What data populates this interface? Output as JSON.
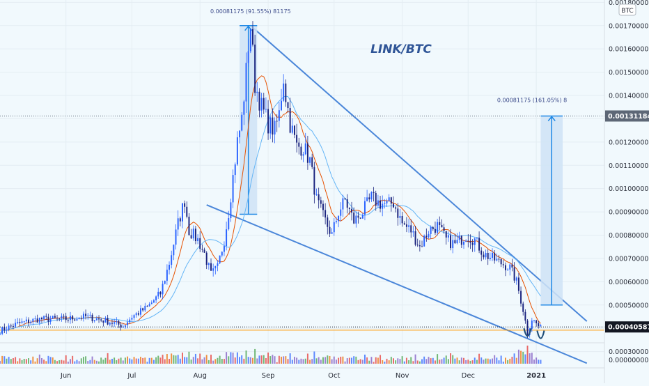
{
  "chart_data": {
    "type": "candlestick",
    "title": "LINK/BTC",
    "currency_badge": "BTC",
    "y_ticks": [
      "0.00180000",
      "0.00170000",
      "0.00160000",
      "0.00150000",
      "0.00140000",
      "0.00130000",
      "0.00120000",
      "0.00110000",
      "0.00100000",
      "0.00090000",
      "0.00080000",
      "0.00070000",
      "0.00060000",
      "0.00050000",
      "0.00040000",
      "0.00030000"
    ],
    "y_tick_values": [
      0.0018,
      0.0017,
      0.0016,
      0.0015,
      0.0014,
      0.0013,
      0.0012,
      0.0011,
      0.001,
      0.0009,
      0.0008,
      0.0007,
      0.0006,
      0.0005,
      0.0004,
      0.0003
    ],
    "ylim": [
      0.00023,
      0.00181
    ],
    "volume_axis_label": "0.00000000",
    "x_ticks": [
      "Jun",
      "Jul",
      "Aug",
      "Sep",
      "Oct",
      "Nov",
      "Dec",
      "2021"
    ],
    "x_tick_dates": [
      "2020-06-01",
      "2020-07-01",
      "2020-08-01",
      "2020-09-01",
      "2020-10-01",
      "2020-11-01",
      "2020-12-01",
      "2021-01-01"
    ],
    "x_range": [
      "2020-05-02",
      "2021-02-01"
    ],
    "price_series": [
      [
        "2020-05-02",
        0.00039
      ],
      [
        "2020-05-10",
        0.00042
      ],
      [
        "2020-05-20",
        0.00044
      ],
      [
        "2020-06-01",
        0.00044
      ],
      [
        "2020-06-10",
        0.00045
      ],
      [
        "2020-06-20",
        0.00043
      ],
      [
        "2020-06-27",
        0.00041
      ],
      [
        "2020-07-01",
        0.00045
      ],
      [
        "2020-07-08",
        0.00049
      ],
      [
        "2020-07-14",
        0.00055
      ],
      [
        "2020-07-18",
        0.00068
      ],
      [
        "2020-07-22",
        0.00085
      ],
      [
        "2020-07-25",
        0.00095
      ],
      [
        "2020-07-27",
        0.00082
      ],
      [
        "2020-07-31",
        0.00078
      ],
      [
        "2020-08-03",
        0.00072
      ],
      [
        "2020-08-06",
        0.00063
      ],
      [
        "2020-08-09",
        0.00066
      ],
      [
        "2020-08-12",
        0.00078
      ],
      [
        "2020-08-14",
        0.0009
      ],
      [
        "2020-08-16",
        0.00105
      ],
      [
        "2020-08-18",
        0.0012
      ],
      [
        "2020-08-20",
        0.0013
      ],
      [
        "2020-08-22",
        0.0015
      ],
      [
        "2020-08-23",
        0.00162
      ],
      [
        "2020-08-24",
        0.0017
      ],
      [
        "2020-08-26",
        0.00145
      ],
      [
        "2020-08-29",
        0.00135
      ],
      [
        "2020-09-01",
        0.00128
      ],
      [
        "2020-09-04",
        0.00125
      ],
      [
        "2020-09-06",
        0.00132
      ],
      [
        "2020-09-08",
        0.00148
      ],
      [
        "2020-09-09",
        0.0014
      ],
      [
        "2020-09-11",
        0.00128
      ],
      [
        "2020-09-14",
        0.00118
      ],
      [
        "2020-09-17",
        0.00118
      ],
      [
        "2020-09-20",
        0.00112
      ],
      [
        "2020-09-23",
        0.00095
      ],
      [
        "2020-09-26",
        0.00088
      ],
      [
        "2020-09-30",
        0.0008
      ],
      [
        "2020-10-03",
        0.0009
      ],
      [
        "2020-10-06",
        0.00095
      ],
      [
        "2020-10-10",
        0.00086
      ],
      [
        "2020-10-14",
        0.0009
      ],
      [
        "2020-10-18",
        0.00096
      ],
      [
        "2020-10-21",
        0.00094
      ],
      [
        "2020-10-25",
        0.00093
      ],
      [
        "2020-10-28",
        0.00094
      ],
      [
        "2020-11-01",
        0.00085
      ],
      [
        "2020-11-05",
        0.00082
      ],
      [
        "2020-11-09",
        0.00075
      ],
      [
        "2020-11-13",
        0.00082
      ],
      [
        "2020-11-17",
        0.00084
      ],
      [
        "2020-11-21",
        0.00078
      ],
      [
        "2020-11-25",
        0.00076
      ],
      [
        "2020-11-30",
        0.0008
      ],
      [
        "2020-12-04",
        0.00078
      ],
      [
        "2020-12-08",
        0.00072
      ],
      [
        "2020-12-12",
        0.0007
      ],
      [
        "2020-12-16",
        0.00068
      ],
      [
        "2020-12-20",
        0.00066
      ],
      [
        "2020-12-23",
        0.0006
      ],
      [
        "2020-12-26",
        0.00048
      ],
      [
        "2020-12-28",
        0.00038
      ],
      [
        "2020-12-30",
        0.00044
      ],
      [
        "2021-01-01",
        0.00042
      ],
      [
        "2021-01-03",
        0.0004
      ]
    ],
    "last_price": "0.00040587",
    "last_price_value": 0.00040587,
    "target_price": "0.00131184",
    "target_price_value": 0.00131184,
    "annotation_top": "0.00081175 (91.55%) 81175",
    "annotation_right": "0.00081175 (161.05%) 8",
    "annotation_top_anchor": [
      "2020-08-24",
      0.0017
    ],
    "annotation_right_anchor": [
      "2021-01-07",
      0.00131184
    ],
    "measure_bars": [
      {
        "date_start": "2020-08-19",
        "date_end": "2020-08-27",
        "from": 0.00089,
        "to": 0.0017
      },
      {
        "date_start": "2021-01-03",
        "date_end": "2021-01-13",
        "from": 0.0005,
        "to": 0.00131184
      }
    ],
    "trend_lines": [
      {
        "from": [
          "2020-08-24",
          0.0017
        ],
        "to": [
          "2021-01-24",
          0.00043
        ]
      },
      {
        "from": [
          "2020-08-04",
          0.00093
        ],
        "to": [
          "2021-01-24",
          0.00025
        ]
      }
    ],
    "double_bottom_marks": [
      [
        "2020-12-28",
        0.00037
      ],
      [
        "2021-01-03",
        0.00036
      ]
    ],
    "colors": {
      "bull": "#2962ff",
      "bear": "#1a237e",
      "ma_fast": "#e65100",
      "ma_slow": "#64b5f6",
      "lines": "#4a86d9",
      "measure_fill": "#cfe3f6",
      "last_price_bg": "#131722",
      "target_bg": "#5d6776",
      "title": "#2f5597"
    }
  }
}
